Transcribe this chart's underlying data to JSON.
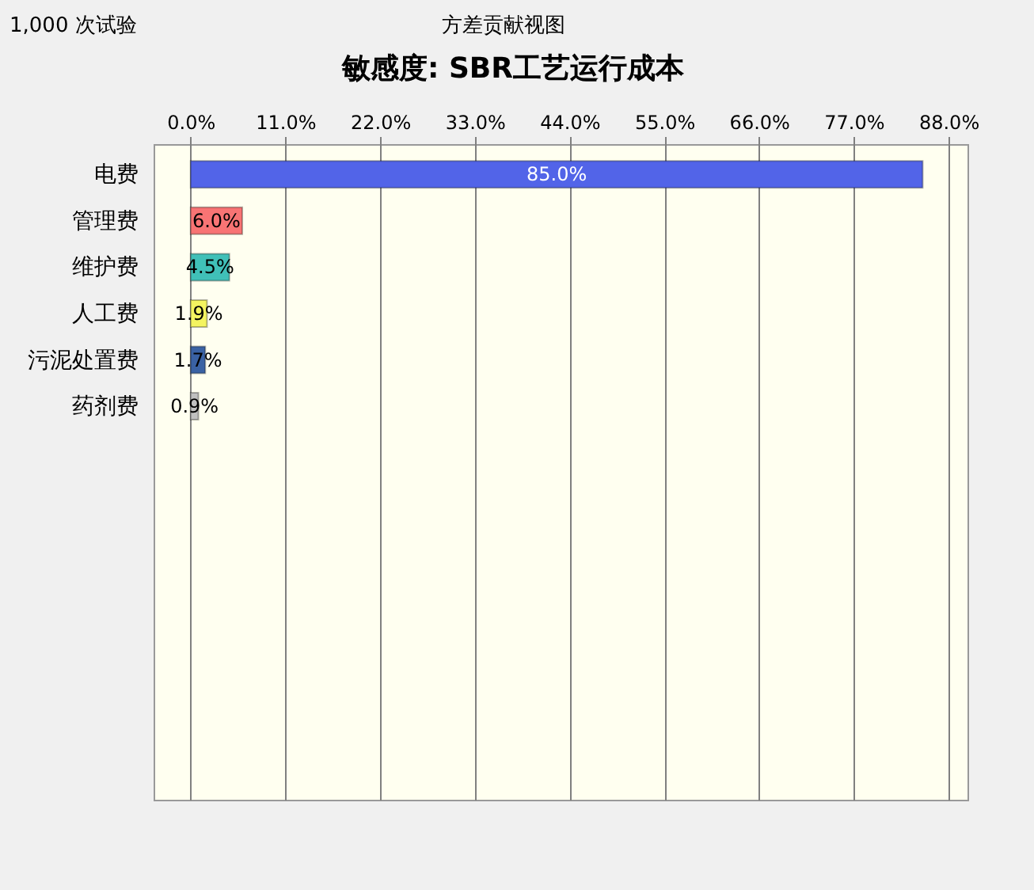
{
  "chart_data": {
    "type": "bar",
    "orientation": "horizontal",
    "title": "敏感度: SBR工艺运行成本",
    "annotations": [
      "1,000 次试验",
      "方差贡献视图"
    ],
    "categories": [
      "电费",
      "管理费",
      "维护费",
      "人工费",
      "污泥处置费",
      "药剂费"
    ],
    "values": [
      85.0,
      6.0,
      4.5,
      1.9,
      1.7,
      0.9
    ],
    "colors": [
      "#5264e8",
      "#f87474",
      "#40c0b8",
      "#f4f460",
      "#3a62a4",
      "#c0c0c0"
    ],
    "value_labels": [
      "85.0%",
      "6.0%",
      "4.5%",
      "1.9%",
      "1.7%",
      "0.9%"
    ],
    "xlim": [
      -4.3,
      90.2
    ],
    "xticks": [
      {
        "value": 0,
        "label": "0.0%"
      },
      {
        "value": 11,
        "label": "11.0%"
      },
      {
        "value": 22,
        "label": "22.0%"
      },
      {
        "value": 33,
        "label": "33.0%"
      },
      {
        "value": 44,
        "label": "44.0%"
      },
      {
        "value": 55,
        "label": "55.0%"
      },
      {
        "value": 66,
        "label": "66.0%"
      },
      {
        "value": 77,
        "label": "77.0%"
      },
      {
        "value": 88,
        "label": "88.0%"
      }
    ],
    "grid": "x"
  }
}
